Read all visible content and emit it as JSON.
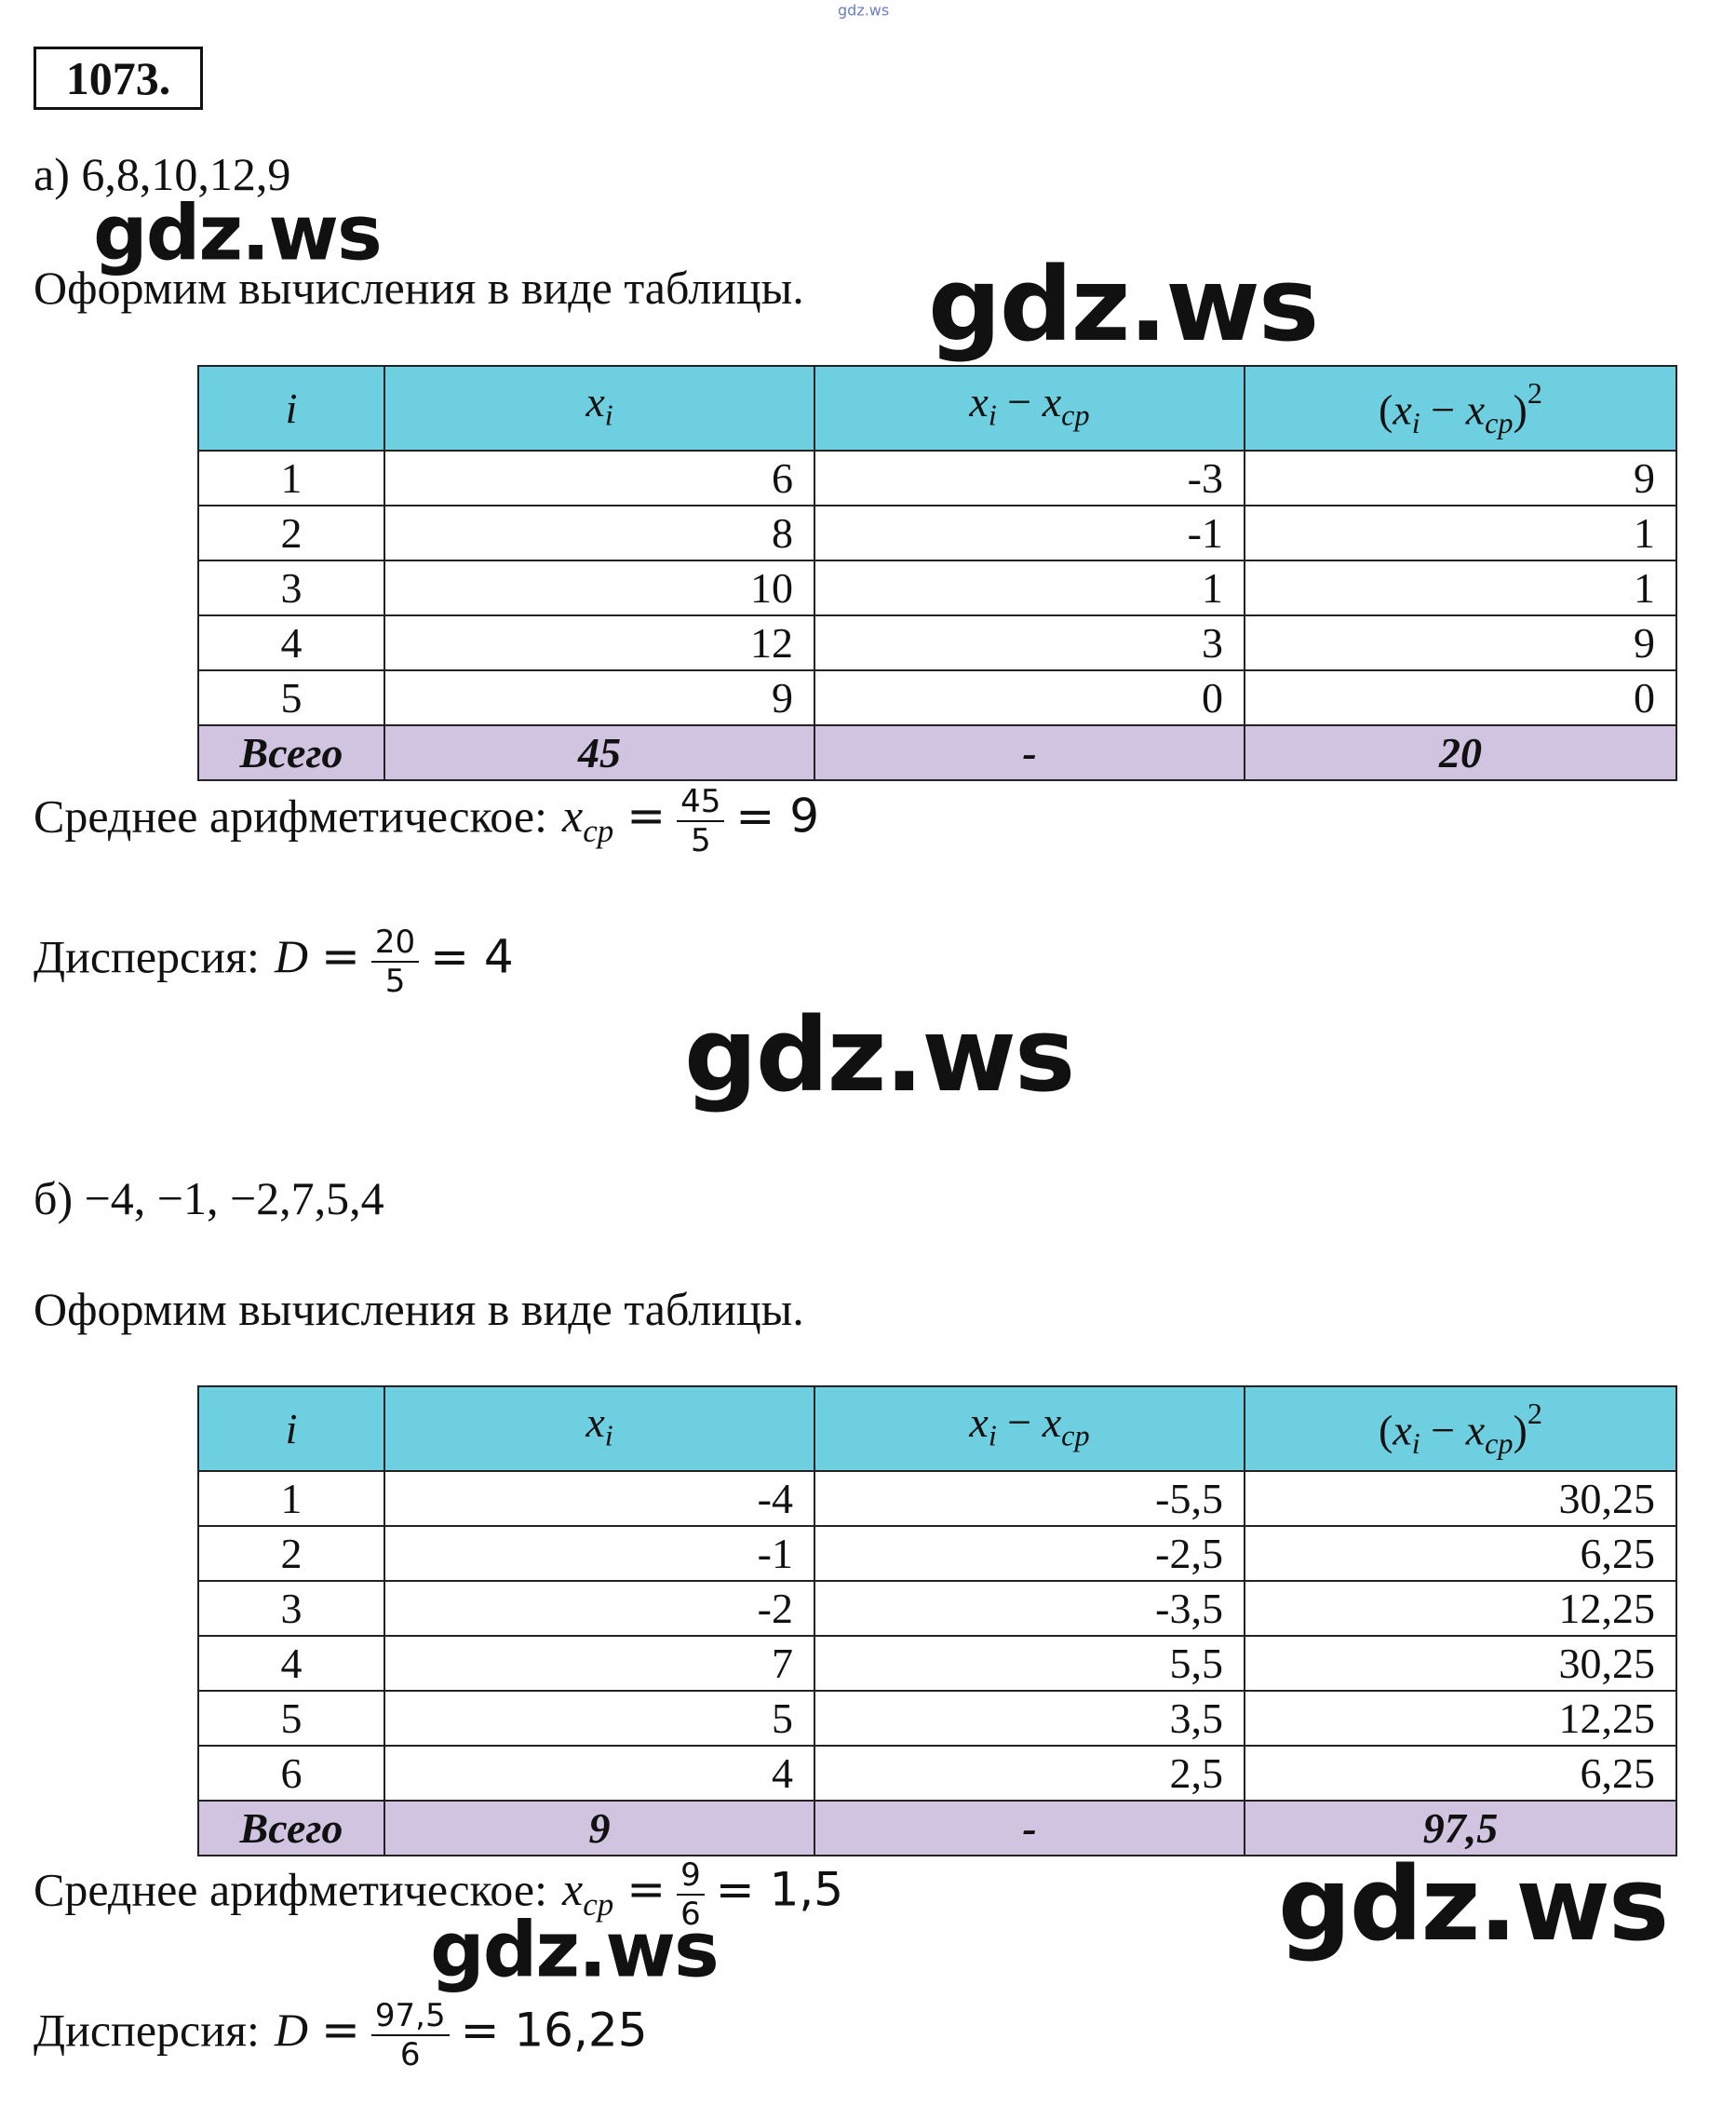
{
  "watermark_top": "gdz.ws",
  "problem_number": "1073.",
  "parts": [
    {
      "label": "а) 6,8,10,12,9",
      "intro": "Оформим вычисления в виде таблицы.",
      "table": {
        "header": [
          [
            {
              "text": "i",
              "style": "i"
            }
          ],
          [
            {
              "text": "x",
              "style": "i"
            },
            {
              "text": "i",
              "style": "sub"
            }
          ],
          [
            {
              "text": "x",
              "style": "i"
            },
            {
              "text": "i",
              "style": "sub"
            },
            {
              "text": " − ",
              "style": "n"
            },
            {
              "text": "x",
              "style": "i"
            },
            {
              "text": "cp",
              "style": "sub"
            }
          ],
          [
            {
              "text": "(",
              "style": "n"
            },
            {
              "text": "x",
              "style": "i"
            },
            {
              "text": "i",
              "style": "sub"
            },
            {
              "text": " − ",
              "style": "n"
            },
            {
              "text": "x",
              "style": "i"
            },
            {
              "text": "cp",
              "style": "sub"
            },
            {
              "text": ")",
              "style": "n"
            },
            {
              "text": "2",
              "style": "sup"
            }
          ]
        ],
        "rows": [
          [
            "1",
            "6",
            "-3",
            "9"
          ],
          [
            "2",
            "8",
            "-1",
            "1"
          ],
          [
            "3",
            "10",
            "1",
            "1"
          ],
          [
            "4",
            "12",
            "3",
            "9"
          ],
          [
            "5",
            "9",
            "0",
            "0"
          ]
        ],
        "total": [
          "Всего",
          "45",
          "-",
          "20"
        ]
      },
      "formulas": [
        {
          "label": "Среднее арифметическое:",
          "var": "x",
          "sub": "cp",
          "eq": "=",
          "num": "45",
          "den": "5",
          "result": "= 9"
        },
        {
          "label": "Дисперсия:",
          "var": "D",
          "eq": "=",
          "num": "20",
          "den": "5",
          "result": "= 4"
        }
      ]
    },
    {
      "label": "б) −4, −1, −2,7,5,4",
      "intro": "Оформим вычисления в виде таблицы.",
      "table": {
        "header": [
          [
            {
              "text": "i",
              "style": "i"
            }
          ],
          [
            {
              "text": "x",
              "style": "i"
            },
            {
              "text": "i",
              "style": "sub"
            }
          ],
          [
            {
              "text": "x",
              "style": "i"
            },
            {
              "text": "i",
              "style": "sub"
            },
            {
              "text": " − ",
              "style": "n"
            },
            {
              "text": "x",
              "style": "i"
            },
            {
              "text": "cp",
              "style": "sub"
            }
          ],
          [
            {
              "text": "(",
              "style": "n"
            },
            {
              "text": "x",
              "style": "i"
            },
            {
              "text": "i",
              "style": "sub"
            },
            {
              "text": " − ",
              "style": "n"
            },
            {
              "text": "x",
              "style": "i"
            },
            {
              "text": "cp",
              "style": "sub"
            },
            {
              "text": ")",
              "style": "n"
            },
            {
              "text": "2",
              "style": "sup"
            }
          ]
        ],
        "rows": [
          [
            "1",
            "-4",
            "-5,5",
            "30,25"
          ],
          [
            "2",
            "-1",
            "-2,5",
            "6,25"
          ],
          [
            "3",
            "-2",
            "-3,5",
            "12,25"
          ],
          [
            "4",
            "7",
            "5,5",
            "30,25"
          ],
          [
            "5",
            "5",
            "3,5",
            "12,25"
          ],
          [
            "6",
            "4",
            "2,5",
            "6,25"
          ]
        ],
        "total": [
          "Всего",
          "9",
          "-",
          "97,5"
        ]
      },
      "formulas": [
        {
          "label": "Среднее арифметическое:",
          "var": "x",
          "sub": "cp",
          "eq": "=",
          "num": "9",
          "den": "6",
          "result": "= 1,5"
        },
        {
          "label": "Дисперсия:",
          "var": "D",
          "eq": "=",
          "num": "97,5",
          "den": "6",
          "result": "= 16,25"
        }
      ]
    }
  ],
  "watermarks": [
    "gdz.ws",
    "gdz.ws",
    "gdz.ws",
    "gdz.ws",
    "gdz.ws"
  ]
}
